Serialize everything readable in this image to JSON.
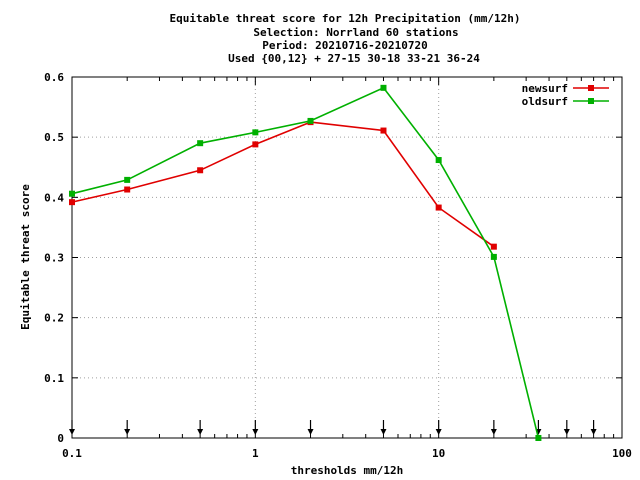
{
  "chart_data": {
    "type": "line",
    "title_lines": [
      "Equitable threat score  for 12h Precipitation (mm/12h)",
      "Selection: Norrland     60 stations",
      "Period: 20210716-20210720",
      "Used {00,12} + 27-15 30-18 33-21 36-24"
    ],
    "xlabel": "thresholds mm/12h",
    "ylabel": "Equitable threat score",
    "xscale": "log",
    "xlim": [
      0.1,
      100
    ],
    "ylim": [
      0,
      0.6
    ],
    "xticks": [
      0.1,
      1,
      10,
      100
    ],
    "xtick_labels": [
      "0.1",
      "1",
      "10",
      "100"
    ],
    "yticks": [
      0,
      0.1,
      0.2,
      0.3,
      0.4,
      0.5,
      0.6
    ],
    "ytick_labels": [
      "0",
      "0.1",
      "0.2",
      "0.3",
      "0.4",
      "0.5",
      "0.6"
    ],
    "grid": true,
    "legend_position": "top-right",
    "threshold_markers": [
      0.1,
      0.2,
      0.5,
      1,
      2,
      5,
      10,
      20,
      35,
      50,
      70
    ],
    "series": [
      {
        "name": "newsurf",
        "color": "#e00000",
        "x": [
          0.1,
          0.2,
          0.5,
          1,
          2,
          5,
          10,
          20
        ],
        "y": [
          0.392,
          0.413,
          0.445,
          0.488,
          0.525,
          0.511,
          0.383,
          0.318
        ]
      },
      {
        "name": "oldsurf",
        "color": "#00b000",
        "x": [
          0.1,
          0.2,
          0.5,
          1,
          2,
          5,
          10,
          20,
          35
        ],
        "y": [
          0.406,
          0.429,
          0.49,
          0.508,
          0.527,
          0.582,
          0.462,
          0.301,
          0.0
        ]
      }
    ]
  }
}
